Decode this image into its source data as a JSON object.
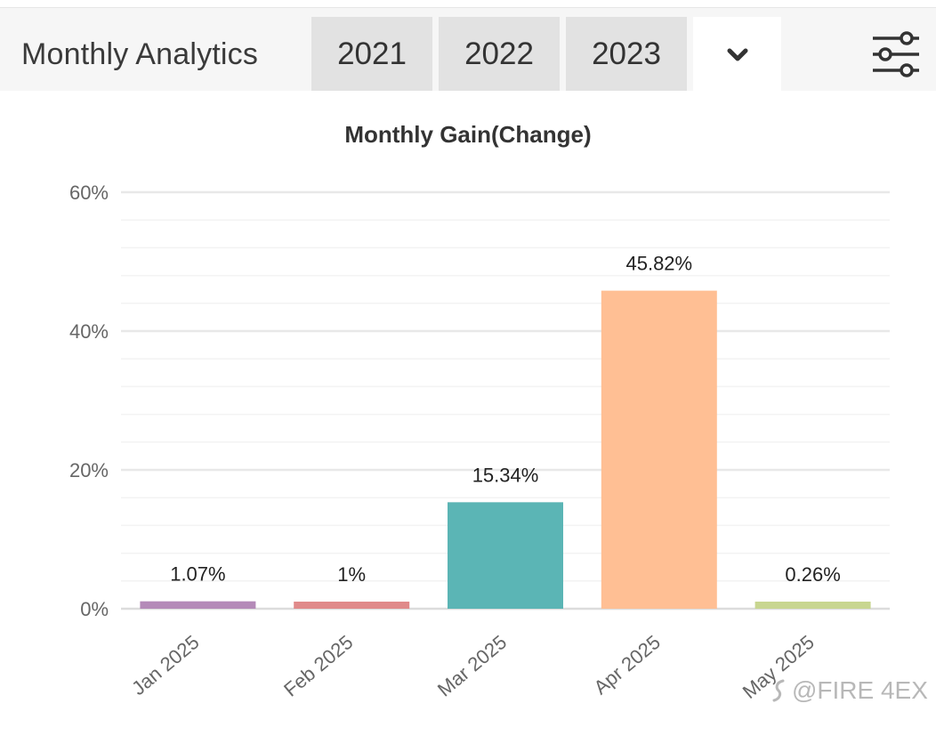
{
  "header": {
    "title": "Monthly Analytics",
    "tabs": [
      {
        "label": "2021"
      },
      {
        "label": "2022"
      },
      {
        "label": "2023"
      }
    ],
    "dropdown_icon": "chevron-down-icon",
    "settings_icon": "sliders-icon"
  },
  "watermark": {
    "text": "@FIRE 4EX"
  },
  "chart_data": {
    "type": "bar",
    "title": "Monthly Gain(Change)",
    "xlabel": "",
    "ylabel": "",
    "categories": [
      "Jan 2025",
      "Feb 2025",
      "Mar 2025",
      "Apr 2025",
      "May 2025"
    ],
    "values": [
      1.07,
      1,
      15.34,
      45.82,
      0.26
    ],
    "data_labels": [
      "1.07%",
      "1%",
      "15.34%",
      "45.82%",
      "0.26%"
    ],
    "colors": [
      "#b48ab8",
      "#e08a8a",
      "#5bb5b5",
      "#ffbf94",
      "#c8d690"
    ],
    "ylim": [
      0,
      60
    ],
    "yticks": [
      0,
      20,
      40,
      60
    ],
    "ytick_labels": [
      "0%",
      "20%",
      "40%",
      "60%"
    ],
    "grid": true,
    "legend": "none"
  }
}
